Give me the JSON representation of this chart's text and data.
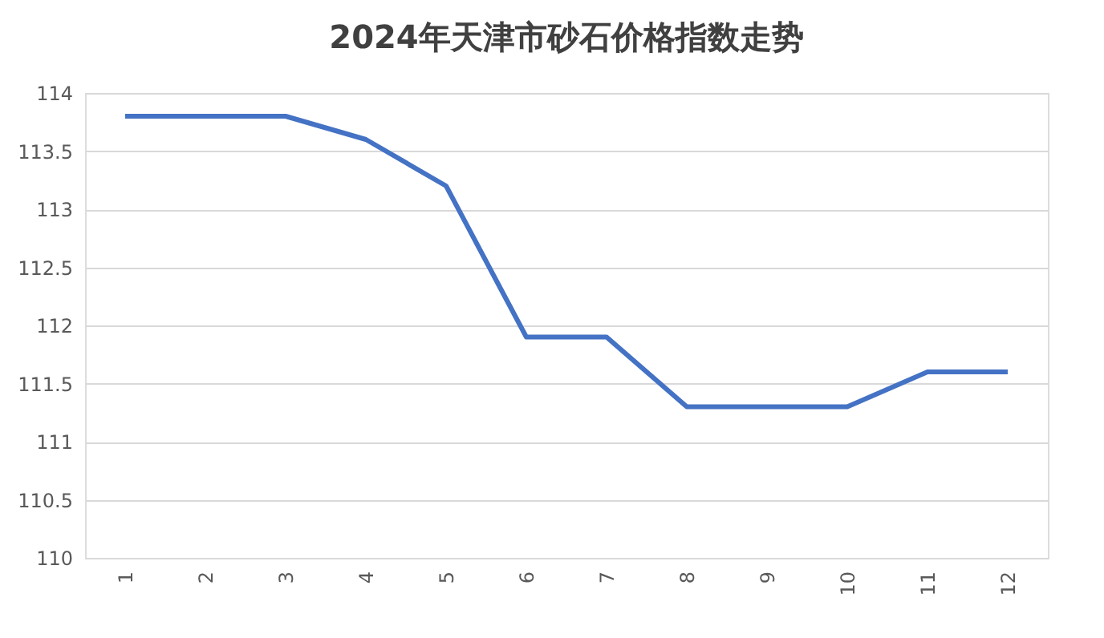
{
  "chart_data": {
    "type": "line",
    "title": "2024年天津市砂石价格指数走势",
    "categories": [
      "1",
      "2",
      "3",
      "4",
      "5",
      "6",
      "7",
      "8",
      "9",
      "10",
      "11",
      "12"
    ],
    "series": [
      {
        "color": "#4472c4",
        "values": [
          113.8,
          113.8,
          113.8,
          113.6,
          113.2,
          111.9,
          111.9,
          111.3,
          111.3,
          111.3,
          111.6,
          111.6
        ]
      }
    ],
    "ylim": [
      110,
      114
    ],
    "yticks": [
      110,
      110.5,
      111,
      111.5,
      112,
      112.5,
      113,
      113.5,
      114
    ],
    "grid": "y",
    "marker": "none",
    "line_style": "solid"
  }
}
